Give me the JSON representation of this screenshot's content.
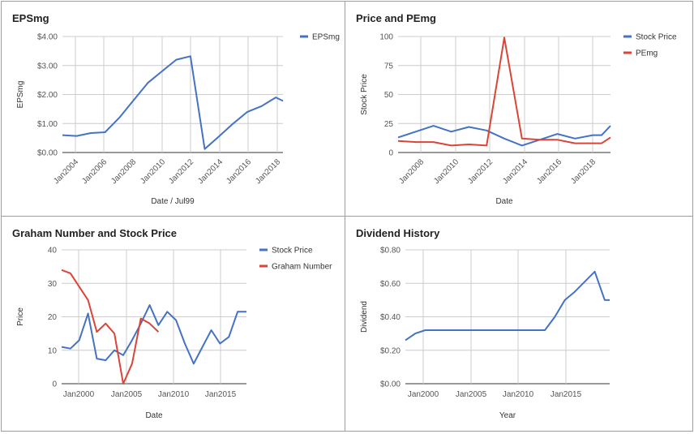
{
  "chart_data": [
    {
      "type": "line",
      "title": "EPSmg",
      "xlabel": "Date / Jul99",
      "ylabel": "EPSmg",
      "x_ticks": [
        "Jan2004",
        "Jan2006",
        "Jan2008",
        "Jan2010",
        "Jan2012",
        "Jan2014",
        "Jan2016",
        "Jan2018"
      ],
      "y_ticks": [
        "$0.00",
        "$1.00",
        "$2.00",
        "$3.00",
        "$4.00"
      ],
      "xlim": [
        2003.0,
        2018.5
      ],
      "ylim": [
        0,
        4
      ],
      "legend_position": "right",
      "colors": [
        "#4472c4"
      ],
      "series": [
        {
          "name": "EPSmg",
          "x": [
            2003,
            2004,
            2005,
            2006,
            2007,
            2008,
            2009,
            2010,
            2011,
            2012,
            2013,
            2014,
            2015,
            2016,
            2017,
            2018,
            2018.5
          ],
          "values": [
            0.6,
            0.57,
            0.67,
            0.7,
            1.2,
            1.8,
            2.4,
            2.8,
            3.2,
            3.32,
            0.12,
            0.55,
            1.0,
            1.4,
            1.6,
            1.9,
            1.78
          ]
        }
      ]
    },
    {
      "type": "line",
      "title": "Price and PEmg",
      "xlabel": "Date",
      "ylabel": "Stock Price",
      "x_ticks": [
        "Jan2008",
        "Jan2010",
        "Jan2012",
        "Jan2014",
        "Jan2016",
        "Jan2018"
      ],
      "y_ticks": [
        "0",
        "25",
        "50",
        "75",
        "100"
      ],
      "xlim": [
        2006.5,
        2018.5
      ],
      "ylim": [
        0,
        100
      ],
      "legend_position": "right",
      "colors": [
        "#4472c4",
        "#db4437"
      ],
      "series": [
        {
          "name": "Stock Price",
          "x": [
            2006.5,
            2007.5,
            2008.5,
            2009.5,
            2010.5,
            2011.5,
            2012.5,
            2013.5,
            2014.5,
            2015.5,
            2016.5,
            2017.5,
            2018.0,
            2018.5
          ],
          "values": [
            13,
            18,
            23,
            18,
            22,
            19,
            12,
            6,
            11,
            16,
            12,
            15,
            15,
            23
          ]
        },
        {
          "name": "PEmg",
          "x": [
            2006.5,
            2007.5,
            2008.5,
            2009.5,
            2010.5,
            2011.5,
            2012.5,
            2013.5,
            2014.5,
            2015.5,
            2016.5,
            2017.5,
            2018.0,
            2018.5
          ],
          "values": [
            10,
            9,
            9,
            6,
            7,
            6,
            99,
            12,
            11,
            11,
            8,
            8,
            8,
            13
          ]
        }
      ]
    },
    {
      "type": "line",
      "title": "Graham Number and Stock Price",
      "xlabel": "Date",
      "ylabel": "Price",
      "x_ticks": [
        "Jan2000",
        "Jan2005",
        "Jan2010",
        "Jan2015"
      ],
      "y_ticks": [
        "0",
        "10",
        "20",
        "30",
        "40"
      ],
      "xlim": [
        1997.5,
        2018.5
      ],
      "ylim": [
        0,
        40
      ],
      "legend_position": "right",
      "colors": [
        "#4472c4",
        "#db4437"
      ],
      "series": [
        {
          "name": "Stock Price",
          "x": [
            1997.5,
            1998.5,
            1999.5,
            2000.5,
            2001.5,
            2002.5,
            2003.5,
            2004.5,
            2005.5,
            2006.5,
            2007.5,
            2008.5,
            2009.5,
            2010.5,
            2011.5,
            2012.5,
            2013.5,
            2014.5,
            2015.5,
            2016.5,
            2017.5,
            2018.5
          ],
          "values": [
            11,
            10.5,
            13,
            21,
            7.5,
            7,
            10,
            8.5,
            13,
            18,
            23.5,
            17.5,
            21.5,
            19,
            12,
            6,
            11,
            16,
            12,
            14,
            21.5,
            21.5
          ]
        },
        {
          "name": "Graham Number",
          "x": [
            1997.5,
            1998.5,
            1999.5,
            2000.5,
            2001.5,
            2002.5,
            2003.5,
            2004.5,
            2005.5,
            2006.5,
            2007.5,
            2008.5
          ],
          "values": [
            34,
            33,
            29,
            25,
            15.5,
            18,
            15,
            0,
            6,
            19.5,
            18,
            15.5
          ]
        }
      ]
    },
    {
      "type": "line",
      "title": "Dividend History",
      "xlabel": "Year",
      "ylabel": "Dividend",
      "x_ticks": [
        "Jan2000",
        "Jan2005",
        "Jan2010",
        "Jan2015"
      ],
      "y_ticks": [
        "$0.00",
        "$0.20",
        "$0.40",
        "$0.60",
        "$0.80"
      ],
      "xlim": [
        1998.0,
        2018.5
      ],
      "ylim": [
        0,
        0.8
      ],
      "legend_position": "none",
      "colors": [
        "#4472c4"
      ],
      "series": [
        {
          "name": "",
          "x": [
            1998,
            1999,
            2000,
            2001,
            2002,
            2003,
            2004,
            2005,
            2006,
            2007,
            2008,
            2009,
            2010,
            2011,
            2012,
            2013,
            2014,
            2015,
            2016,
            2017,
            2018,
            2018.5
          ],
          "values": [
            0.26,
            0.3,
            0.32,
            0.32,
            0.32,
            0.32,
            0.32,
            0.32,
            0.32,
            0.32,
            0.32,
            0.32,
            0.32,
            0.32,
            0.32,
            0.4,
            0.5,
            0.55,
            0.61,
            0.67,
            0.5,
            0.5
          ]
        }
      ]
    }
  ]
}
